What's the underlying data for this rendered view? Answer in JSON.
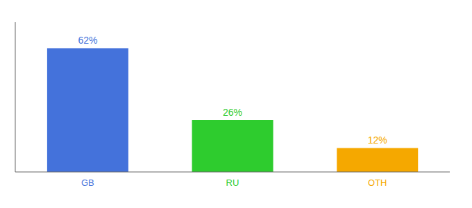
{
  "chart_data": {
    "type": "bar",
    "categories": [
      "GB",
      "RU",
      "OTH"
    ],
    "values": [
      62,
      26,
      12
    ],
    "value_labels": [
      "62%",
      "26%",
      "12%"
    ],
    "colors": [
      "#4472db",
      "#2ecc2e",
      "#f5a800"
    ],
    "ylim": [
      0,
      75
    ],
    "data_labels": true,
    "tick_labels": "x",
    "grid": false
  }
}
